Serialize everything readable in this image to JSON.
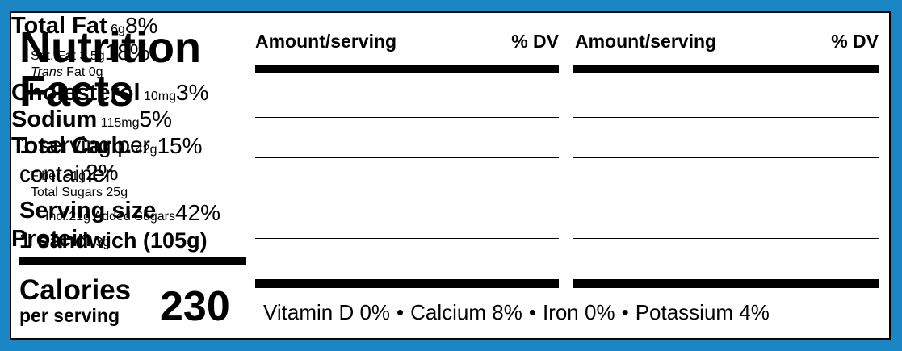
{
  "header": {
    "title": "Nutrition Facts",
    "servings": "1 serving per container",
    "serving_size_label": "Serving size",
    "serving_size": "1 sandwich (105g)",
    "calories_label": "Calories",
    "calories_sub": "per serving",
    "calories": "230"
  },
  "left": {
    "amount_header": "Amount/serving",
    "dv_header": "% DV",
    "rows": [
      {
        "name": "Total Fat",
        "amount": "6g",
        "dv": "8%"
      },
      {
        "name": "Sat. Fat",
        "amount": "3.5g",
        "dv": "18%"
      },
      {
        "name_italic": "Trans",
        "name": "Fat",
        "amount": "0g"
      },
      {
        "name": "Cholesterol",
        "amount": "10mg",
        "dv": "3%"
      },
      {
        "name": "Sodium",
        "amount": "115mg",
        "dv": "5%"
      }
    ]
  },
  "right": {
    "amount_header": "Amount/serving",
    "dv_header": "% DV",
    "rows": [
      {
        "name": "Total Carb.",
        "amount": "42g",
        "dv": "15%"
      },
      {
        "name": "Fiber",
        "amount": "<1g",
        "dv": "2%"
      },
      {
        "name": "Total Sugars",
        "amount": "25g"
      },
      {
        "name": "Incl.21g Added Sugars",
        "dv": "42%"
      },
      {
        "name": "Protein",
        "amount": "3g"
      }
    ]
  },
  "footer": {
    "items": [
      "Vitamin D 0%",
      "Calcium 8%",
      "Iron 0%",
      "Potassium 4%"
    ]
  }
}
